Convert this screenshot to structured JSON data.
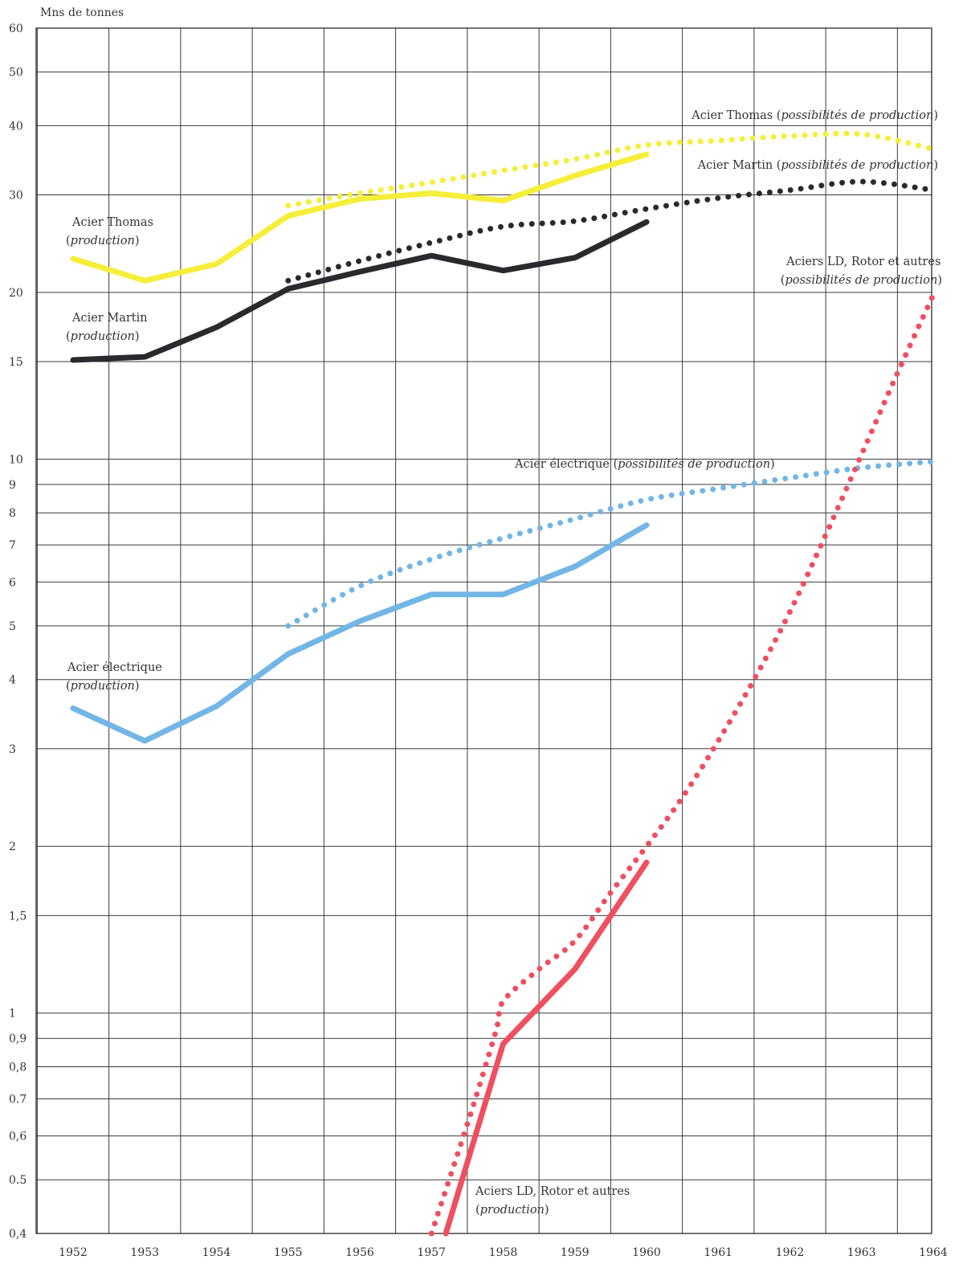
{
  "chart_data": {
    "type": "line",
    "ylabel": "Mns de tonnes",
    "yscale": "log",
    "ylim": [
      0.4,
      60
    ],
    "y_ticks": [
      {
        "v": 0.4,
        "label": "0,4"
      },
      {
        "v": 0.5,
        "label": "0.5"
      },
      {
        "v": 0.6,
        "label": "0,6"
      },
      {
        "v": 0.7,
        "label": "0.7"
      },
      {
        "v": 0.8,
        "label": "0,8"
      },
      {
        "v": 0.9,
        "label": "0,9"
      },
      {
        "v": 1,
        "label": "1"
      },
      {
        "v": 1.5,
        "label": "1,5"
      },
      {
        "v": 2,
        "label": "2"
      },
      {
        "v": 3,
        "label": "3"
      },
      {
        "v": 4,
        "label": "4"
      },
      {
        "v": 5,
        "label": "5"
      },
      {
        "v": 6,
        "label": "6"
      },
      {
        "v": 7,
        "label": "7"
      },
      {
        "v": 8,
        "label": "8"
      },
      {
        "v": 9,
        "label": "9"
      },
      {
        "v": 10,
        "label": "10"
      },
      {
        "v": 15,
        "label": "15"
      },
      {
        "v": 20,
        "label": "20"
      },
      {
        "v": 30,
        "label": "30"
      },
      {
        "v": 40,
        "label": "40"
      },
      {
        "v": 50,
        "label": "50"
      },
      {
        "v": 60,
        "label": "60"
      }
    ],
    "x_ticks": [
      1952,
      1953,
      1954,
      1955,
      1956,
      1957,
      1958,
      1959,
      1960,
      1961,
      1962,
      1963,
      1964
    ],
    "xlim": [
      1951.5,
      1964.2
    ],
    "grid": true,
    "colors": {
      "thomas": "#f5ee3a",
      "martin": "#2a2a2e",
      "electrique": "#72b6e6",
      "ld": "#ef4f5e"
    },
    "series": [
      {
        "name": "Acier Thomas (production)",
        "style": "solid",
        "color_key": "thomas",
        "points": [
          [
            1952,
            23.0
          ],
          [
            1953,
            21.0
          ],
          [
            1954,
            22.5
          ],
          [
            1955,
            27.5
          ],
          [
            1956,
            29.5
          ],
          [
            1957,
            30.2
          ],
          [
            1958,
            29.3
          ],
          [
            1959,
            32.5
          ],
          [
            1960,
            35.5
          ]
        ]
      },
      {
        "name": "Acier Thomas (possibilités de production)",
        "style": "dotted",
        "color_key": "thomas",
        "points": [
          [
            1955,
            28.7
          ],
          [
            1956,
            30.2
          ],
          [
            1957,
            31.6
          ],
          [
            1958,
            33.2
          ],
          [
            1959,
            34.8
          ],
          [
            1960,
            36.9
          ],
          [
            1961,
            37.6
          ],
          [
            1962,
            38.3
          ],
          [
            1963,
            38.6
          ],
          [
            1964,
            36.3
          ]
        ]
      },
      {
        "name": "Acier Martin (production)",
        "style": "solid",
        "color_key": "martin",
        "points": [
          [
            1952,
            15.1
          ],
          [
            1953,
            15.3
          ],
          [
            1954,
            17.3
          ],
          [
            1955,
            20.3
          ],
          [
            1956,
            21.8
          ],
          [
            1957,
            23.3
          ],
          [
            1958,
            21.9
          ],
          [
            1959,
            23.1
          ],
          [
            1960,
            26.8
          ]
        ]
      },
      {
        "name": "Acier Martin (possibilités de production)",
        "style": "dotted",
        "color_key": "martin",
        "points": [
          [
            1955,
            21.0
          ],
          [
            1956,
            22.8
          ],
          [
            1957,
            24.6
          ],
          [
            1958,
            26.3
          ],
          [
            1959,
            26.9
          ],
          [
            1960,
            28.3
          ],
          [
            1961,
            29.6
          ],
          [
            1962,
            30.6
          ],
          [
            1963,
            31.7
          ],
          [
            1964,
            30.6
          ]
        ]
      },
      {
        "name": "Acier électrique (production)",
        "style": "solid",
        "color_key": "electrique",
        "points": [
          [
            1952,
            3.55
          ],
          [
            1953,
            3.1
          ],
          [
            1954,
            3.58
          ],
          [
            1955,
            4.45
          ],
          [
            1956,
            5.1
          ],
          [
            1957,
            5.7
          ],
          [
            1958,
            5.7
          ],
          [
            1959,
            6.4
          ],
          [
            1960,
            7.6
          ]
        ]
      },
      {
        "name": "Acier électrique (possibilités de production)",
        "style": "dotted",
        "color_key": "electrique",
        "points": [
          [
            1955,
            5.0
          ],
          [
            1956,
            5.9
          ],
          [
            1957,
            6.6
          ],
          [
            1958,
            7.2
          ],
          [
            1959,
            7.8
          ],
          [
            1960,
            8.45
          ],
          [
            1961,
            8.85
          ],
          [
            1962,
            9.25
          ],
          [
            1963,
            9.65
          ],
          [
            1964,
            9.9
          ]
        ]
      },
      {
        "name": "Aciers LD, Rotor et autres (production)",
        "style": "solid",
        "color_key": "ld",
        "points": [
          [
            1957.2,
            0.4
          ],
          [
            1958,
            0.88
          ],
          [
            1959,
            1.2
          ],
          [
            1960,
            1.87
          ]
        ]
      },
      {
        "name": "Aciers LD, Rotor et autres (possibilités de production)",
        "style": "dotted",
        "color_key": "ld",
        "points": [
          [
            1957,
            0.4
          ],
          [
            1957.55,
            0.66
          ],
          [
            1957.9,
            0.93
          ],
          [
            1958,
            1.05
          ],
          [
            1958.5,
            1.2
          ],
          [
            1959,
            1.35
          ],
          [
            1959.5,
            1.65
          ],
          [
            1960,
            2.0
          ],
          [
            1960.5,
            2.45
          ],
          [
            1961,
            3.1
          ],
          [
            1961.5,
            4.0
          ],
          [
            1962,
            5.3
          ],
          [
            1962.5,
            7.3
          ],
          [
            1963,
            10.2
          ],
          [
            1963.5,
            14.3
          ],
          [
            1964,
            19.8
          ]
        ]
      }
    ],
    "labels": {
      "thomas_prod": {
        "name": "Acier Thomas",
        "sub": "production"
      },
      "martin_prod": {
        "name": "Acier Martin",
        "sub": "production"
      },
      "elec_prod": {
        "name": "Acier électrique",
        "sub": "production"
      },
      "ld_prod": {
        "name": "Aciers LD, Rotor et autres",
        "sub": "production"
      },
      "thomas_cap": {
        "name": "Acier Thomas",
        "sub": "possibilités de production"
      },
      "martin_cap": {
        "name": "Acier Martin",
        "sub": "possibilités de production"
      },
      "elec_cap": {
        "name": "Acier électrique",
        "sub": "possibilités de production"
      },
      "ld_cap": {
        "name": "Aciers LD, Rotor et autres",
        "sub": "possibilités de production"
      }
    }
  }
}
